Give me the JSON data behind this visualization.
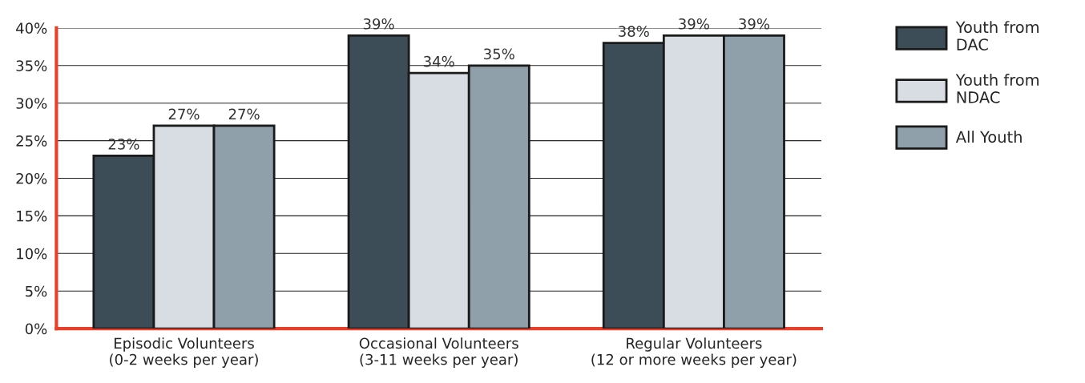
{
  "chart_data": {
    "type": "bar",
    "categories": [
      "Episodic Volunteers\n(0-2 weeks per year)",
      "Occasional Volunteers\n(3-11 weeks per year)",
      "Regular Volunteers\n(12 or more weeks per year)"
    ],
    "series": [
      {
        "name": "Youth from\nDAC",
        "color": "#3d4d57",
        "values": [
          23,
          39,
          38
        ],
        "value_labels": [
          "23%",
          "39%",
          "38%"
        ]
      },
      {
        "name": "Youth from\nNDAC",
        "color": "#d8dde3",
        "values": [
          27,
          34,
          39
        ],
        "value_labels": [
          "27%",
          "34%",
          "39%"
        ]
      },
      {
        "name": "All Youth",
        "color": "#8fa0aa",
        "values": [
          27,
          35,
          39
        ],
        "value_labels": [
          "27%",
          "35%",
          "39%"
        ]
      }
    ],
    "ylim": [
      0,
      40
    ],
    "yticks": [
      {
        "value": 0,
        "label": "0%"
      },
      {
        "value": 5,
        "label": "5%"
      },
      {
        "value": 10,
        "label": "10%"
      },
      {
        "value": 15,
        "label": "15%"
      },
      {
        "value": 20,
        "label": "20%"
      },
      {
        "value": 25,
        "label": "25%"
      },
      {
        "value": 30,
        "label": "30%"
      },
      {
        "value": 35,
        "label": "35%"
      },
      {
        "value": 40,
        "label": "40%"
      }
    ],
    "grid": "y",
    "legend": "right"
  }
}
